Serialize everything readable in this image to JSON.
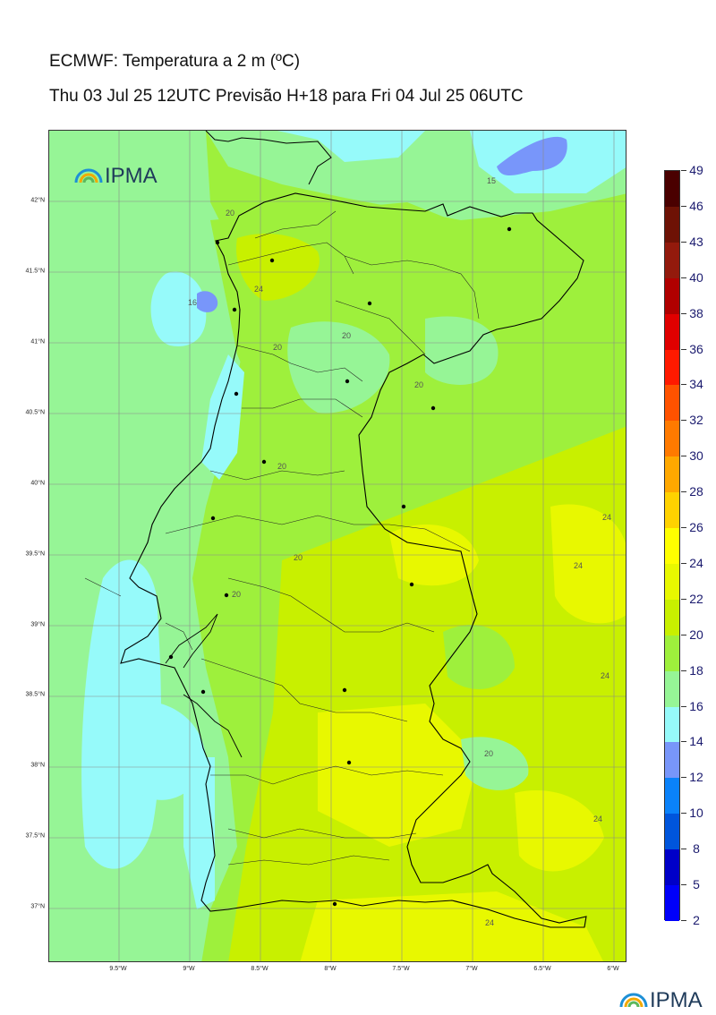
{
  "header": {
    "title": "ECMWF: Temperatura a 2 m (ºC)",
    "subtitle": "Thu 03 Jul 25 12UTC Previsão H+18 para Fri 04 Jul 25 06UTC"
  },
  "logo": {
    "text": "IPMA"
  },
  "map": {
    "lat_labels": [
      "42°N",
      "41.5°N",
      "41°N",
      "40.5°N",
      "40°N",
      "39.5°N",
      "39°N",
      "38.5°N",
      "38°N",
      "37.5°N",
      "37°N"
    ],
    "lon_labels": [
      "9.5°W",
      "9°W",
      "8.5°W",
      "8°W",
      "7.5°W",
      "7°W",
      "6.5°W",
      "6°W"
    ],
    "contour_labels": [
      "15",
      "20",
      "24",
      "16",
      "20",
      "20",
      "20",
      "20",
      "20",
      "24",
      "24",
      "20",
      "24",
      "24",
      "20",
      "24"
    ]
  },
  "colorbar": {
    "labels": [
      "49",
      "46",
      "43",
      "40",
      "38",
      "36",
      "34",
      "32",
      "30",
      "28",
      "26",
      "24",
      "22",
      "20",
      "18",
      "16",
      "14",
      "12",
      "10",
      "8",
      "5",
      "2"
    ],
    "colors": [
      "#4a0000",
      "#6e1205",
      "#931a0c",
      "#b00000",
      "#e00000",
      "#ff1a00",
      "#ff5200",
      "#ff7a00",
      "#ffa800",
      "#ffd200",
      "#ffff00",
      "#e8f800",
      "#c8f000",
      "#9ef03c",
      "#96f596",
      "#96fafa",
      "#7896fa",
      "#0a82fa",
      "#0055dc",
      "#0000c8",
      "#0000fa",
      "#7800fa",
      "#d200fa"
    ]
  }
}
